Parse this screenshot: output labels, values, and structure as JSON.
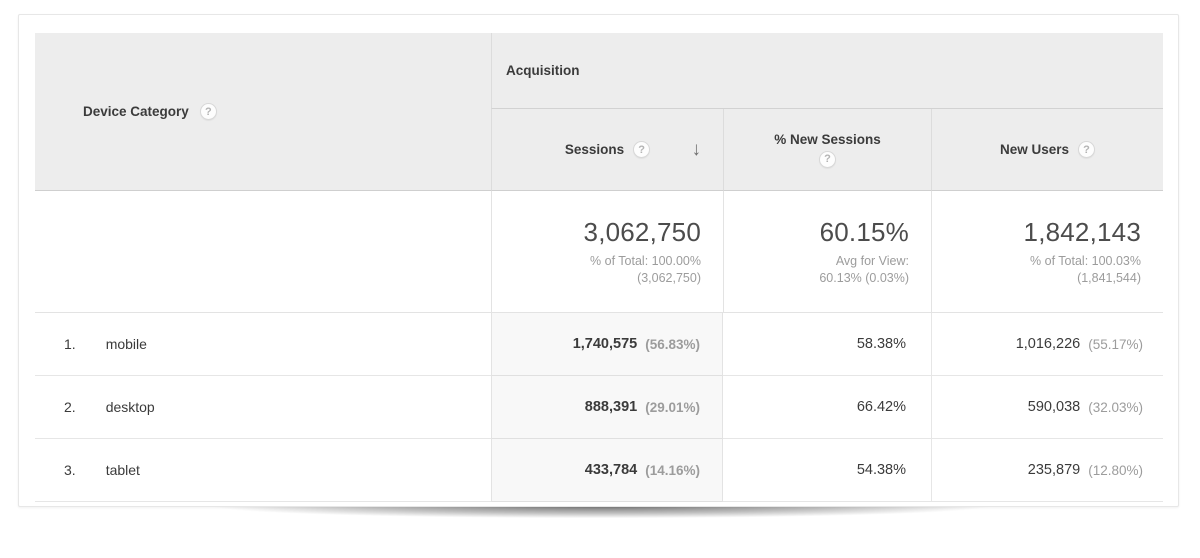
{
  "table": {
    "dimension_column": {
      "label": "Device Category"
    },
    "section_header": {
      "label": "Acquisition"
    },
    "metric_columns": {
      "sessions": {
        "label": "Sessions",
        "sorted": "descending"
      },
      "percent_new_sessions": {
        "label": "% New Sessions"
      },
      "new_users": {
        "label": "New Users"
      }
    },
    "summary": {
      "sessions": {
        "value": "3,062,750",
        "subline1": "% of Total: 100.00%",
        "subline2": "(3,062,750)"
      },
      "percent_new_sessions": {
        "value": "60.15%",
        "subline1": "Avg for View:",
        "subline2": "60.13% (0.03%)"
      },
      "new_users": {
        "value": "1,842,143",
        "subline1": "% of Total: 100.03%",
        "subline2": "(1,841,544)"
      }
    },
    "rows": [
      {
        "rank": "1.",
        "device": "mobile",
        "sessions": "1,740,575",
        "sessions_share": "(56.83%)",
        "percent_new_sessions": "58.38%",
        "new_users": "1,016,226",
        "new_users_share": "(55.17%)"
      },
      {
        "rank": "2.",
        "device": "desktop",
        "sessions": "888,391",
        "sessions_share": "(29.01%)",
        "percent_new_sessions": "66.42%",
        "new_users": "590,038",
        "new_users_share": "(32.03%)"
      },
      {
        "rank": "3.",
        "device": "tablet",
        "sessions": "433,784",
        "sessions_share": "(14.16%)",
        "percent_new_sessions": "54.38%",
        "new_users": "235,879",
        "new_users_share": "(12.80%)"
      }
    ]
  },
  "icons": {
    "help": "?",
    "sort_descending": "↓"
  },
  "colors": {
    "header_bg": "#ededed",
    "sorted_cell_bg": "#f8f8f8",
    "primary_text": "#3b3b3b",
    "secondary_text": "#9c9c9c",
    "border": "#e3e3e3"
  }
}
